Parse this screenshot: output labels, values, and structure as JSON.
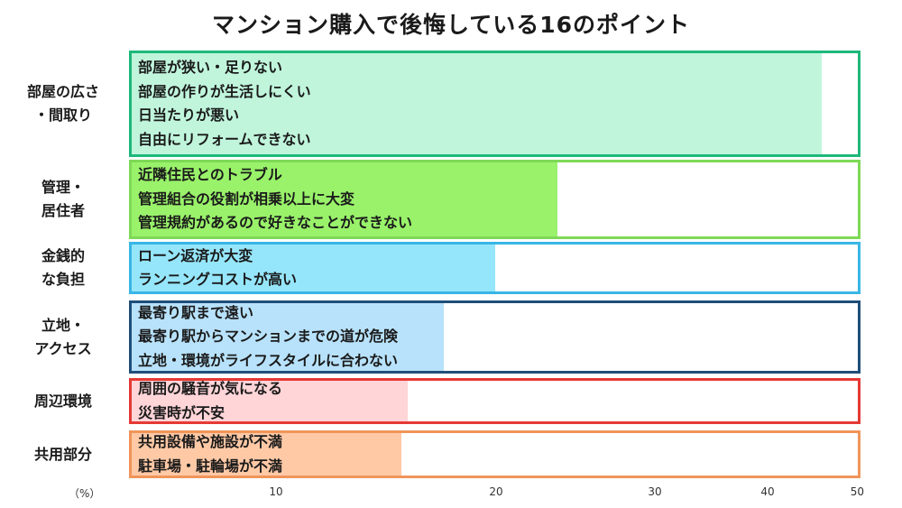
{
  "chart_data": {
    "type": "bar",
    "orientation": "horizontal",
    "title": "マンション購入で後悔している16のポイント",
    "unit_label": "（%）",
    "xlim": [
      0,
      50
    ],
    "ticks": [
      "10",
      "20",
      "30",
      "40",
      "50"
    ],
    "categories": [
      {
        "label": [
          "部屋の広さ",
          "・間取り"
        ],
        "value": 47.5,
        "color": "#1db87a",
        "fill": "#c0f5dc",
        "items": [
          "部屋が狭い・足りない",
          "部屋の作りが生活しにくい",
          "日当たりが悪い",
          "自由にリフォームできない"
        ]
      },
      {
        "label": [
          "管理・",
          "居住者"
        ],
        "value": 29.3,
        "color": "#7ed957",
        "fill": "#99f26a",
        "items": [
          "近隣住民とのトラブル",
          "管理組合の役割が相乗以上に大変",
          "管理規約があるので好きなことができない"
        ]
      },
      {
        "label": [
          "金銭的",
          "な負担"
        ],
        "value": 25.0,
        "color": "#38b6e5",
        "fill": "#96e6fb",
        "items": [
          "ローン返済が大変",
          "ランニングコストが高い"
        ]
      },
      {
        "label": [
          "立地・",
          "アクセス"
        ],
        "value": 21.5,
        "color": "#1f4e79",
        "fill": "#b8e2fb",
        "items": [
          "最寄り駅まで遠い",
          "最寄り駅からマンションまでの道が危険",
          "立地・環境がライフスタイルに合わない"
        ]
      },
      {
        "label": [
          "周辺環境"
        ],
        "value": 19.0,
        "color": "#e53935",
        "fill": "#ffd5d8",
        "items": [
          "周囲の騒音が気になる",
          "災害時が不安"
        ]
      },
      {
        "label": [
          "共用部分"
        ],
        "value": 18.6,
        "color": "#f0955a",
        "fill": "#ffc9a6",
        "items": [
          "共用設備や施設が不満",
          "駐車場・駐輪場が不満"
        ]
      }
    ],
    "grid": false,
    "legend": "none"
  }
}
